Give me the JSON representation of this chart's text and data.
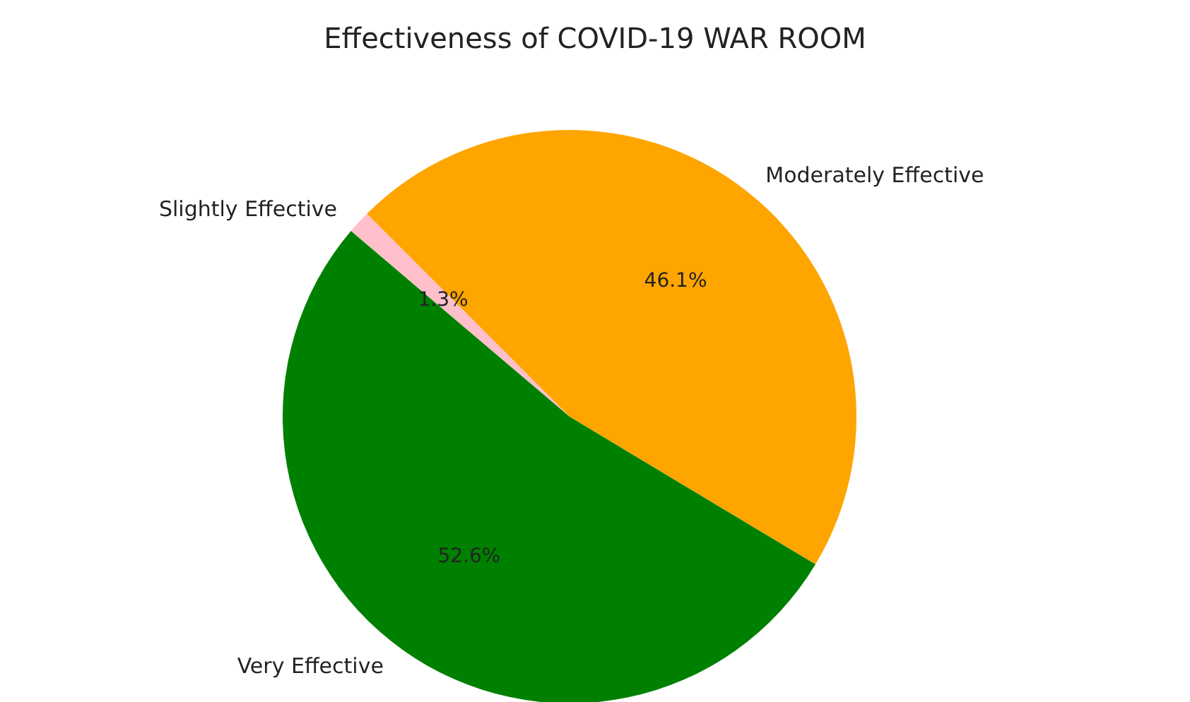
{
  "chart_data": {
    "type": "pie",
    "title": "Effectiveness of COVID-19 WAR ROOM",
    "categories": [
      "Moderately Effective",
      "Slightly Effective",
      "Very Effective"
    ],
    "values": [
      46.1,
      1.3,
      52.6
    ],
    "colors": [
      "#ffa500",
      "#ffc0cb",
      "#008000"
    ],
    "value_labels": [
      "46.1%",
      "1.3%",
      "52.6%"
    ],
    "legend": false
  }
}
